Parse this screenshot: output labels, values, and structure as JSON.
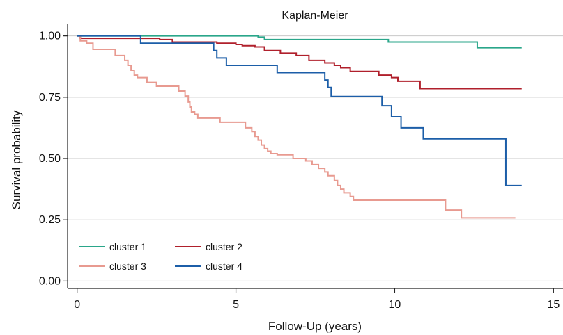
{
  "chart_data": {
    "type": "line",
    "step": true,
    "title": "Kaplan-Meier",
    "xlabel": "Follow-Up (years)",
    "ylabel": "Survival probability",
    "xlim": [
      -0.3,
      15.3
    ],
    "ylim": [
      -0.03,
      1.05
    ],
    "xticks": [
      0,
      5,
      10,
      15
    ],
    "xtick_labels": [
      "0",
      "5",
      "10",
      "15"
    ],
    "yticks": [
      0,
      0.25,
      0.5,
      0.75,
      1.0
    ],
    "ytick_labels": [
      "0.00",
      "0.25",
      "0.50",
      "0.75",
      "1.00"
    ],
    "grid": "horizontal",
    "legend_position": "bottom-left",
    "series": [
      {
        "name": "cluster 1",
        "color": "#2aa68a",
        "x": [
          0,
          5.7,
          5.9,
          9.8,
          12.6,
          14
        ],
        "y": [
          1.0,
          0.995,
          0.985,
          0.975,
          0.952,
          0.952
        ]
      },
      {
        "name": "cluster 2",
        "color": "#b0202c",
        "x": [
          0,
          0.1,
          2.6,
          3.0,
          4.4,
          5.0,
          5.2,
          5.6,
          5.9,
          6.4,
          6.9,
          7.3,
          7.8,
          8.1,
          8.3,
          8.6,
          9.5,
          9.9,
          10.1,
          10.8,
          14
        ],
        "y": [
          1.0,
          0.99,
          0.985,
          0.975,
          0.97,
          0.965,
          0.96,
          0.955,
          0.94,
          0.93,
          0.92,
          0.9,
          0.89,
          0.88,
          0.87,
          0.855,
          0.84,
          0.83,
          0.815,
          0.785,
          0.785
        ]
      },
      {
        "name": "cluster 3",
        "color": "#e89a90",
        "x": [
          0,
          0.1,
          0.3,
          0.5,
          1.2,
          1.5,
          1.6,
          1.7,
          1.8,
          1.9,
          2.2,
          2.5,
          3.2,
          3.4,
          3.5,
          3.55,
          3.6,
          3.7,
          3.8,
          4.5,
          5.3,
          5.5,
          5.6,
          5.7,
          5.8,
          5.9,
          6.0,
          6.1,
          6.3,
          6.8,
          7.2,
          7.4,
          7.6,
          7.8,
          7.9,
          8.1,
          8.2,
          8.3,
          8.4,
          8.6,
          8.7,
          11.6,
          12.1,
          13.8
        ],
        "y": [
          1.0,
          0.98,
          0.97,
          0.945,
          0.92,
          0.9,
          0.88,
          0.86,
          0.84,
          0.83,
          0.81,
          0.795,
          0.775,
          0.755,
          0.73,
          0.71,
          0.69,
          0.68,
          0.665,
          0.648,
          0.625,
          0.61,
          0.59,
          0.575,
          0.555,
          0.54,
          0.53,
          0.52,
          0.515,
          0.5,
          0.49,
          0.475,
          0.46,
          0.445,
          0.43,
          0.41,
          0.39,
          0.375,
          0.36,
          0.345,
          0.33,
          0.29,
          0.258,
          0.258
        ]
      },
      {
        "name": "cluster 4",
        "color": "#1c5ea8",
        "x": [
          0,
          2.0,
          4.3,
          4.4,
          4.7,
          6.3,
          7.8,
          7.9,
          8.0,
          9.6,
          9.9,
          10.2,
          10.9,
          13.5,
          14
        ],
        "y": [
          1.0,
          0.97,
          0.94,
          0.91,
          0.88,
          0.85,
          0.82,
          0.79,
          0.753,
          0.715,
          0.67,
          0.625,
          0.58,
          0.39,
          0.39
        ]
      }
    ]
  }
}
